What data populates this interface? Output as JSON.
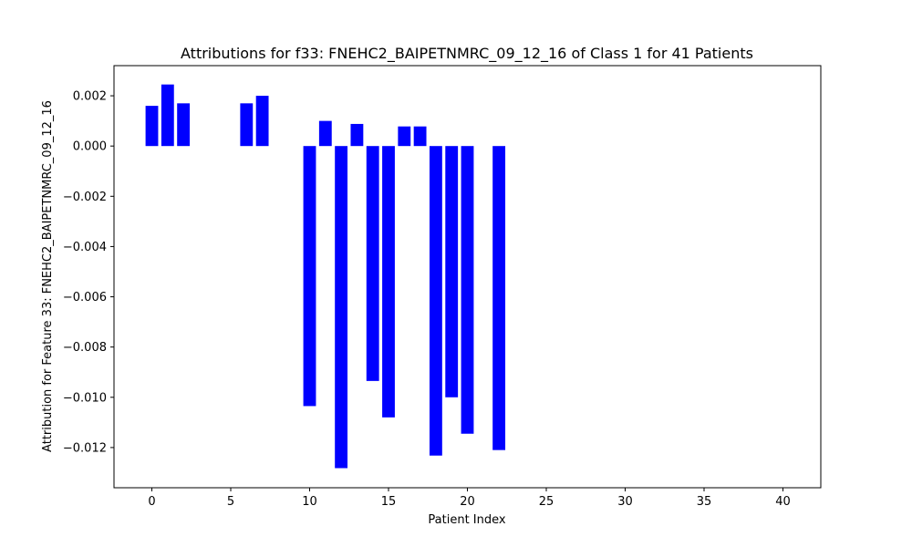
{
  "chart_data": {
    "type": "bar",
    "title": "Attributions for f33: FNEHC2_BAIPETNMRC_09_12_16 of Class 1 for 41 Patients",
    "xlabel": "Patient Index",
    "ylabel": "Attribution for Feature 33: FNEHC2_BAIPETNMRC_09_12_16",
    "x": [
      0,
      1,
      2,
      3,
      4,
      5,
      6,
      7,
      8,
      9,
      10,
      11,
      12,
      13,
      14,
      15,
      16,
      17,
      18,
      19,
      20,
      21,
      22,
      23,
      24,
      25,
      26,
      27,
      28,
      29,
      30,
      31,
      32,
      33,
      34,
      35,
      36,
      37,
      38,
      39,
      40
    ],
    "values": [
      0.0016,
      0.00245,
      0.0017,
      0,
      0,
      0,
      0.0017,
      0.002,
      0,
      0,
      -0.01035,
      0.001,
      -0.01282,
      0.00088,
      -0.00935,
      -0.0108,
      0.00078,
      0.00078,
      -0.01232,
      -0.01,
      -0.01145,
      0,
      -0.0121,
      0,
      0,
      0,
      0,
      0,
      0,
      0,
      0,
      0,
      0,
      0,
      0,
      0,
      0,
      0,
      0,
      0,
      0
    ],
    "xlim": [
      -2.4,
      42.4
    ],
    "ylim": [
      -0.0136,
      0.0032
    ],
    "xticks": [
      0,
      5,
      10,
      15,
      20,
      25,
      30,
      35,
      40
    ],
    "xtick_labels": [
      "0",
      "5",
      "10",
      "15",
      "20",
      "25",
      "30",
      "35",
      "40"
    ],
    "yticks": [
      0.002,
      0,
      -0.002,
      -0.004,
      -0.006,
      -0.008,
      -0.01,
      -0.012
    ],
    "ytick_labels": [
      "0.002",
      "0.000",
      "−0.002",
      "−0.004",
      "−0.006",
      "−0.008",
      "−0.010",
      "−0.012"
    ],
    "bar_color": "#0000ff",
    "grid": false
  }
}
